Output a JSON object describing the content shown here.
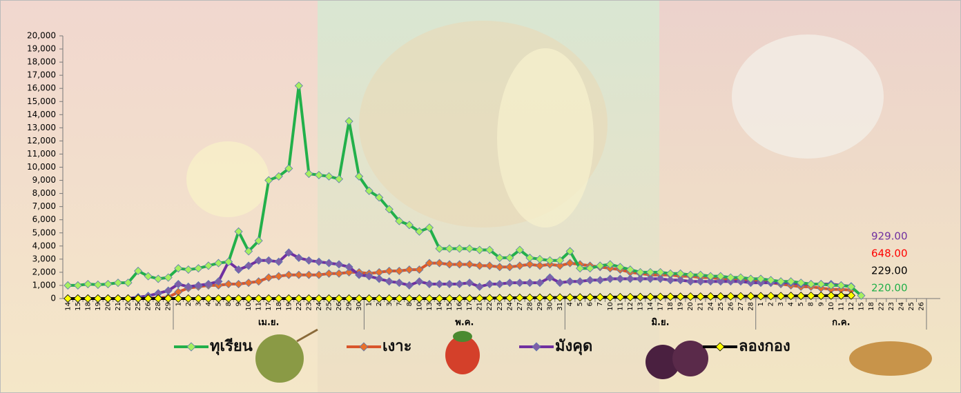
{
  "chart_data": {
    "type": "line",
    "categories": [
      "14",
      "15",
      "18",
      "19",
      "20",
      "21",
      "22",
      "25",
      "26",
      "28",
      "29",
      "1",
      "2",
      "3",
      "4",
      "5",
      "8",
      "9",
      "10",
      "11",
      "17",
      "18",
      "19",
      "22",
      "23",
      "24",
      "25",
      "26",
      "29",
      "30",
      "1",
      "2",
      "3",
      "7",
      "8",
      "10",
      "13",
      "14",
      "15",
      "16",
      "17",
      "21",
      "22",
      "23",
      "24",
      "27",
      "28",
      "29",
      "30",
      "31",
      "4",
      "5",
      "6",
      "7",
      "10",
      "11",
      "12",
      "13",
      "14",
      "17",
      "18",
      "19",
      "20",
      "21",
      "24",
      "25",
      "26",
      "27",
      "28",
      "1",
      "2",
      "3",
      "4",
      "5",
      "8",
      "9",
      "10",
      "11",
      "12",
      "15",
      "18",
      "22",
      "23",
      "24",
      "25",
      "26"
    ],
    "month_groups": [
      {
        "label": null,
        "count": 11
      },
      {
        "label": "เม.ย.",
        "count": 19
      },
      {
        "label": "พ.ค.",
        "count": 20
      },
      {
        "label": "มิ.ย.",
        "count": 19
      },
      {
        "label": "ก.ค.",
        "count": 17
      }
    ],
    "series": [
      {
        "name": "ทุเรียน",
        "color": "#22b04a",
        "marker_color": "#a6f060",
        "values": [
          1000,
          1000,
          1100,
          1050,
          1100,
          1200,
          1200,
          2100,
          1700,
          1500,
          1600,
          2300,
          2200,
          2300,
          2500,
          2700,
          2800,
          5100,
          3600,
          4400,
          9000,
          9300,
          9900,
          16200,
          9500,
          9400,
          9300,
          9100,
          13500,
          9300,
          8200,
          7700,
          6800,
          5900,
          5600,
          5100,
          5400,
          3800,
          3800,
          3800,
          3800,
          3700,
          3700,
          3100,
          3100,
          3700,
          3100,
          3000,
          2900,
          2900,
          3600,
          2300,
          2300,
          2500,
          2600,
          2400,
          2200,
          2000,
          2000,
          2000,
          1900,
          1900,
          1800,
          1800,
          1700,
          1700,
          1600,
          1600,
          1500,
          1500,
          1400,
          1300,
          1300,
          1200,
          1100,
          1100,
          1000,
          1000,
          900,
          220,
          null,
          null,
          null,
          null,
          null,
          null
        ]
      },
      {
        "name": "เงาะ",
        "color": "#d9552b",
        "marker_color": "#e8702a",
        "values": [
          0,
          0,
          0,
          0,
          0,
          0,
          0,
          0,
          0,
          50,
          100,
          500,
          800,
          900,
          1000,
          1000,
          1100,
          1100,
          1200,
          1300,
          1600,
          1700,
          1800,
          1800,
          1800,
          1800,
          1900,
          1900,
          2000,
          2000,
          1900,
          2000,
          2100,
          2100,
          2200,
          2200,
          2700,
          2700,
          2600,
          2600,
          2600,
          2500,
          2500,
          2400,
          2400,
          2500,
          2600,
          2500,
          2600,
          2500,
          2700,
          2600,
          2500,
          2400,
          2300,
          2200,
          2000,
          1900,
          1800,
          1800,
          1800,
          1700,
          1700,
          1600,
          1600,
          1500,
          1500,
          1400,
          1400,
          1300,
          1200,
          1100,
          1000,
          900,
          900,
          800,
          700,
          700,
          648,
          null,
          null,
          null,
          null,
          null,
          null,
          null
        ]
      },
      {
        "name": "มังคุด",
        "color": "#7030a0",
        "marker_color": "#7f5ea8",
        "values": [
          0,
          0,
          0,
          0,
          0,
          0,
          0,
          100,
          200,
          400,
          600,
          1100,
          900,
          1000,
          1100,
          1300,
          2800,
          2200,
          2500,
          2900,
          2900,
          2800,
          3500,
          3100,
          2900,
          2800,
          2700,
          2600,
          2400,
          1800,
          1700,
          1500,
          1300,
          1200,
          1000,
          1300,
          1100,
          1100,
          1100,
          1100,
          1200,
          900,
          1100,
          1100,
          1200,
          1200,
          1200,
          1200,
          1600,
          1200,
          1300,
          1300,
          1400,
          1400,
          1500,
          1500,
          1500,
          1500,
          1500,
          1500,
          1400,
          1400,
          1300,
          1300,
          1300,
          1300,
          1300,
          1300,
          1200,
          1200,
          1200,
          1200,
          1200,
          1100,
          1100,
          1100,
          1100,
          1000,
          929,
          null,
          null,
          null,
          null,
          null,
          null,
          null
        ]
      },
      {
        "name": "ลองกอง",
        "color": "#000000",
        "marker_color": "#ffff00",
        "values": [
          0,
          0,
          0,
          0,
          0,
          0,
          0,
          0,
          0,
          0,
          0,
          0,
          0,
          0,
          0,
          0,
          0,
          0,
          0,
          0,
          0,
          0,
          0,
          0,
          0,
          0,
          0,
          0,
          0,
          0,
          0,
          0,
          0,
          0,
          0,
          0,
          0,
          0,
          0,
          0,
          10,
          20,
          30,
          40,
          50,
          60,
          60,
          70,
          70,
          80,
          80,
          90,
          90,
          100,
          100,
          110,
          110,
          120,
          120,
          130,
          140,
          140,
          150,
          150,
          160,
          160,
          170,
          170,
          180,
          180,
          190,
          190,
          200,
          200,
          210,
          210,
          220,
          220,
          229,
          null,
          null,
          null,
          null,
          null,
          null,
          null
        ]
      }
    ],
    "annotations": [
      {
        "text": "929.00",
        "color": "#7030a0"
      },
      {
        "text": "648.00",
        "color": "#ff0000"
      },
      {
        "text": "229.00",
        "color": "#000000"
      },
      {
        "text": "220.00",
        "color": "#22b04a"
      }
    ],
    "ylim": [
      0,
      20000
    ],
    "yticks": [
      0,
      {
        "value": 1000,
        "label": "1,000"
      },
      {
        "value": 2000,
        "label": "2,000"
      },
      {
        "value": 3000,
        "label": "3,000"
      },
      {
        "value": 4000,
        "label": "4,000"
      },
      {
        "value": 5000,
        "label": "5,000"
      },
      {
        "value": 6000,
        "label": "6,000"
      },
      {
        "value": 7000,
        "label": "7,000"
      },
      {
        "value": 8000,
        "label": "8,000"
      },
      {
        "value": 9000,
        "label": "9,000"
      },
      {
        "value": 10000,
        "label": "10,000"
      },
      {
        "value": 11000,
        "label": "11,000"
      },
      {
        "value": 12000,
        "label": "12,000"
      },
      {
        "value": 13000,
        "label": "13,000"
      },
      {
        "value": 14000,
        "label": "14,000"
      },
      {
        "value": 15000,
        "label": "15,000"
      },
      {
        "value": 16000,
        "label": "16,000"
      },
      {
        "value": 17000,
        "label": "17,000"
      },
      {
        "value": 18000,
        "label": "18,000"
      },
      {
        "value": 19000,
        "label": "19,000"
      },
      {
        "value": 20000,
        "label": "20,000"
      }
    ],
    "grid": false
  }
}
